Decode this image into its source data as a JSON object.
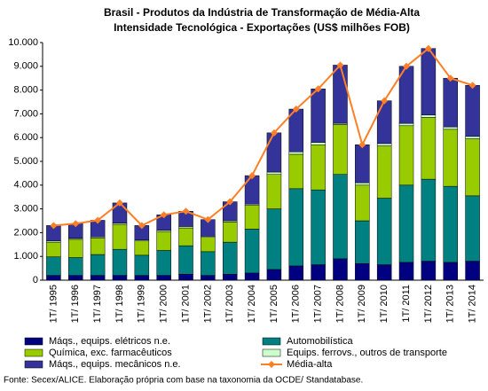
{
  "chart_data": {
    "type": "bar",
    "stacked": true,
    "title": "Brasil - Produtos da Indústria de Transformação de Média-Alta",
    "subtitle": "Intensidade Tecnológica - Exportações (US$ milhões FOB)",
    "categories": [
      "1T/ 1995",
      "1T/ 1996",
      "1T/ 1997",
      "1T/ 1998",
      "1T/ 1999",
      "1T/ 2000",
      "1T/ 2001",
      "1T/ 2002",
      "1T/ 2003",
      "1T/ 2004",
      "1T/ 2005",
      "1T/ 2006",
      "1T/ 2007",
      "1T/ 2008",
      "1T/ 2009",
      "1T/ 2010",
      "1T/ 2011",
      "1T/ 2012",
      "1T/ 2013",
      "1T/ 2014"
    ],
    "series": [
      {
        "name": "Máqs., equips. elétricos n.e.",
        "color": "#000080",
        "values": [
          200,
          200,
          200,
          200,
          200,
          200,
          250,
          200,
          250,
          300,
          450,
          600,
          650,
          900,
          700,
          650,
          750,
          800,
          750,
          800
        ]
      },
      {
        "name": "Automobilística",
        "color": "#008080",
        "values": [
          780,
          750,
          880,
          1100,
          850,
          1050,
          1200,
          1000,
          1350,
          1850,
          2550,
          3250,
          3150,
          3550,
          1800,
          2800,
          3250,
          3450,
          3200,
          2750
        ]
      },
      {
        "name": "Química, exc. farmacêuticos",
        "color": "#99cc00",
        "values": [
          620,
          770,
          700,
          1050,
          600,
          800,
          750,
          600,
          850,
          1000,
          1450,
          1450,
          1900,
          2100,
          1500,
          2200,
          2500,
          2600,
          2400,
          2400
        ]
      },
      {
        "name": "Equips. ferrovs., outros de transporte",
        "color": "#ccffcc",
        "values": [
          50,
          40,
          40,
          50,
          40,
          50,
          60,
          50,
          50,
          50,
          100,
          100,
          100,
          50,
          100,
          100,
          100,
          100,
          100,
          100
        ]
      },
      {
        "name": "Máqs., equips. mecânicos n.e.",
        "color": "#333399",
        "values": [
          650,
          620,
          700,
          850,
          610,
          650,
          640,
          700,
          800,
          1200,
          1650,
          1800,
          2250,
          2450,
          1600,
          1800,
          2400,
          2800,
          2050,
          2150
        ]
      },
      {
        "name": "Média-alta",
        "type": "line",
        "color": "#ff7f27",
        "values": [
          2300,
          2380,
          2520,
          3250,
          2300,
          2750,
          2900,
          2550,
          3300,
          4400,
          6200,
          7200,
          8050,
          9050,
          5700,
          7550,
          9000,
          9750,
          8500,
          8200
        ]
      }
    ],
    "ylim": [
      0,
      10000
    ],
    "yticks": [
      0,
      {
        "value": 1000,
        "label": "1.000"
      },
      {
        "value": 2000,
        "label": "2.000"
      },
      {
        "value": 3000,
        "label": "3.000"
      },
      {
        "value": 4000,
        "label": "4.000"
      },
      {
        "value": 5000,
        "label": "5.000"
      },
      {
        "value": 6000,
        "label": "6.000"
      },
      {
        "value": 7000,
        "label": "7.000"
      },
      {
        "value": 8000,
        "label": "8.000"
      },
      {
        "value": 9000,
        "label": "9.000"
      },
      {
        "value": 10000,
        "label": "10.000"
      }
    ],
    "grid": false,
    "legend": "bottom",
    "source": "Fonte: Secex/ALICE. Elaboração própria com base na taxonomia da OCDE/ Standatabase."
  }
}
